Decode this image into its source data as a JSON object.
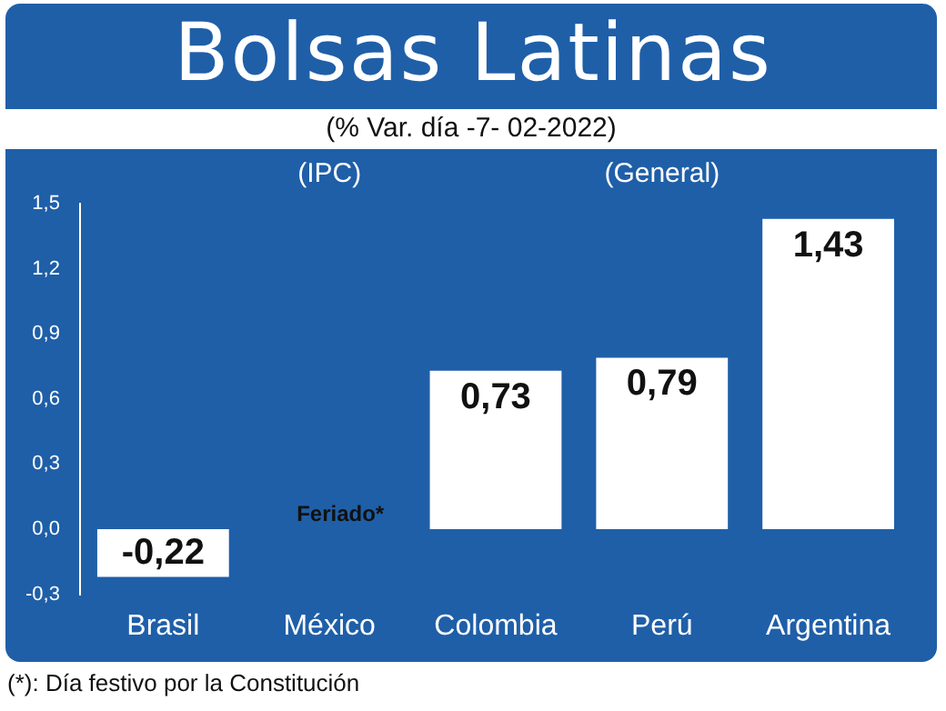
{
  "chart_data": {
    "type": "bar",
    "title": "Bolsas Latinas",
    "subtitle": "(% Var. día -7- 02-2022)",
    "categories": [
      "Brasil",
      "México",
      "Colombia",
      "Perú",
      "Argentina"
    ],
    "values": [
      -0.22,
      null,
      0.73,
      0.79,
      1.43
    ],
    "value_labels": [
      "-0,22",
      null,
      "0,73",
      "0,79",
      "1,43"
    ],
    "color": "#ffffff",
    "ylim": [
      -0.3,
      1.5
    ],
    "yticks": [
      {
        "value": -0.3,
        "label": "-0,3"
      },
      {
        "value": 0,
        "label": "0,0"
      },
      {
        "value": 0.3,
        "label": "0,3"
      },
      {
        "value": 0.6,
        "label": "0,6"
      },
      {
        "value": 0.9,
        "label": "0,9"
      },
      {
        "value": 1.2,
        "label": "1,2"
      },
      {
        "value": 1.5,
        "label": "1,5"
      }
    ],
    "grid": false,
    "legend": false,
    "annotations": [
      "(IPC)",
      "(General)",
      "Feriado*",
      "(*): Día festivo por la Constitución"
    ]
  }
}
